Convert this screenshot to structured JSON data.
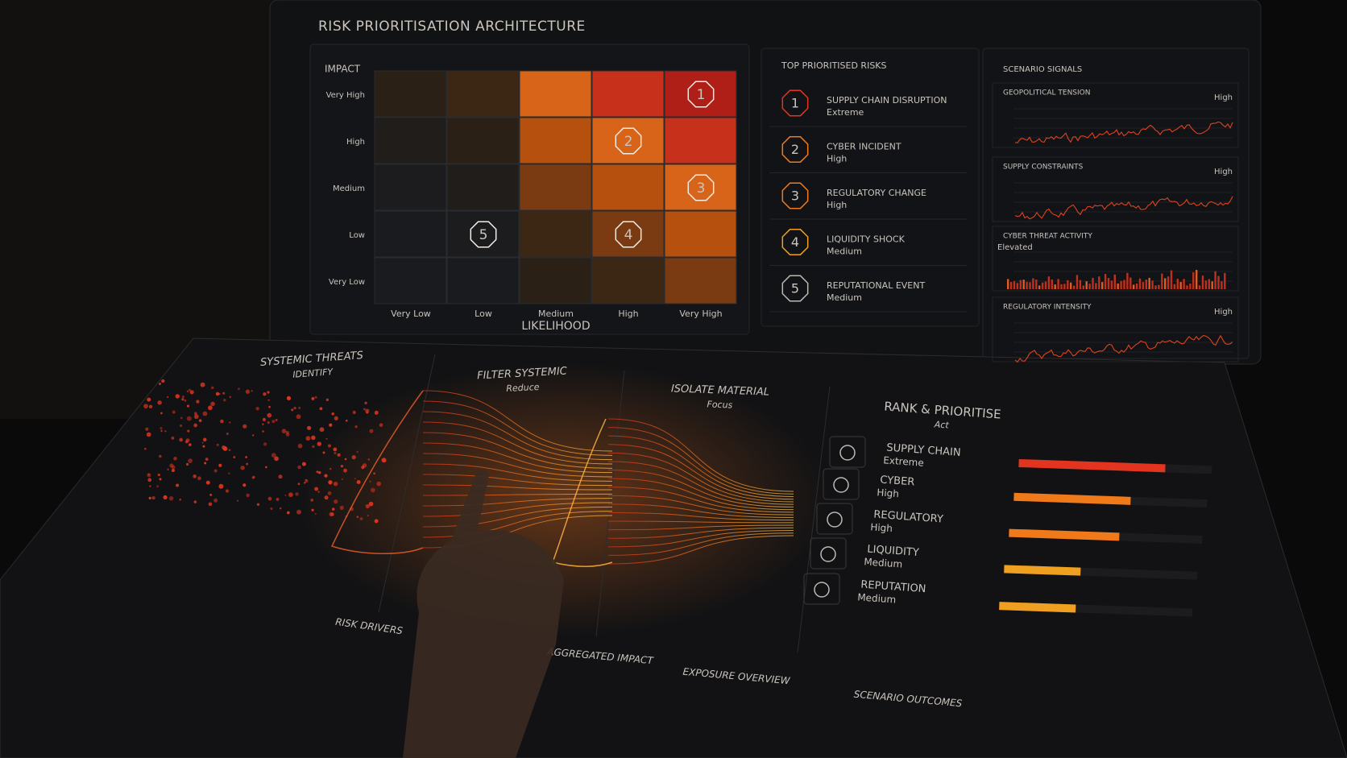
{
  "header": {
    "title": "RISK PRIORITISATION ARCHITECTURE"
  },
  "matrix": {
    "y_label": "IMPACT",
    "x_label": "LIKELIHOOD",
    "rows": [
      "Very High",
      "High",
      "Medium",
      "Low",
      "Very Low"
    ],
    "columns": [
      "Very Low",
      "Low",
      "Medium",
      "High",
      "Very High"
    ],
    "cells": [
      [
        null,
        null,
        null,
        null,
        "1"
      ],
      [
        null,
        null,
        null,
        "2",
        null
      ],
      [
        null,
        null,
        null,
        null,
        "3"
      ],
      [
        null,
        "5",
        null,
        "4",
        null
      ],
      [
        null,
        null,
        null,
        null,
        null
      ]
    ]
  },
  "top_risks": {
    "title": "TOP PRIORITISED RISKS",
    "items": [
      {
        "rank": "1",
        "name": "SUPPLY CHAIN DISRUPTION",
        "level": "Extreme"
      },
      {
        "rank": "2",
        "name": "CYBER INCIDENT",
        "level": "High"
      },
      {
        "rank": "3",
        "name": "REGULATORY CHANGE",
        "level": "High"
      },
      {
        "rank": "4",
        "name": "LIQUIDITY SHOCK",
        "level": "Medium"
      },
      {
        "rank": "5",
        "name": "REPUTATIONAL EVENT",
        "level": "Medium"
      }
    ]
  },
  "signals": {
    "title": "SCENARIO SIGNALS",
    "items": [
      {
        "name": "GEOPOLITICAL TENSION",
        "level": "High"
      },
      {
        "name": "SUPPLY CONSTRAINTS",
        "level": "High"
      },
      {
        "name": "CYBER THREAT ACTIVITY",
        "level": "Elevated"
      },
      {
        "name": "REGULATORY INTENSITY",
        "level": "High"
      }
    ]
  },
  "stages": [
    {
      "title": "SYSTEMIC THREATS",
      "subtitle": "IDENTIFY"
    },
    {
      "title": "FILTER SYSTEMIC",
      "subtitle": "Reduce"
    },
    {
      "title": "ISOLATE MATERIAL",
      "subtitle": "Focus"
    },
    {
      "title": "RANK & PRIORITISE",
      "subtitle": "Act"
    }
  ],
  "ranking": [
    {
      "name": "SUPPLY CHAIN",
      "level": "Extreme"
    },
    {
      "name": "CYBER",
      "level": "High"
    },
    {
      "name": "REGULATORY",
      "level": "High"
    },
    {
      "name": "LIQUIDITY",
      "level": "Medium"
    },
    {
      "name": "REPUTATION",
      "level": "Medium"
    }
  ],
  "footer": [
    "RISK DRIVERS",
    "AGGREGATED IMPACT",
    "EXPOSURE OVERVIEW",
    "SCENARIO OUTCOMES"
  ]
}
